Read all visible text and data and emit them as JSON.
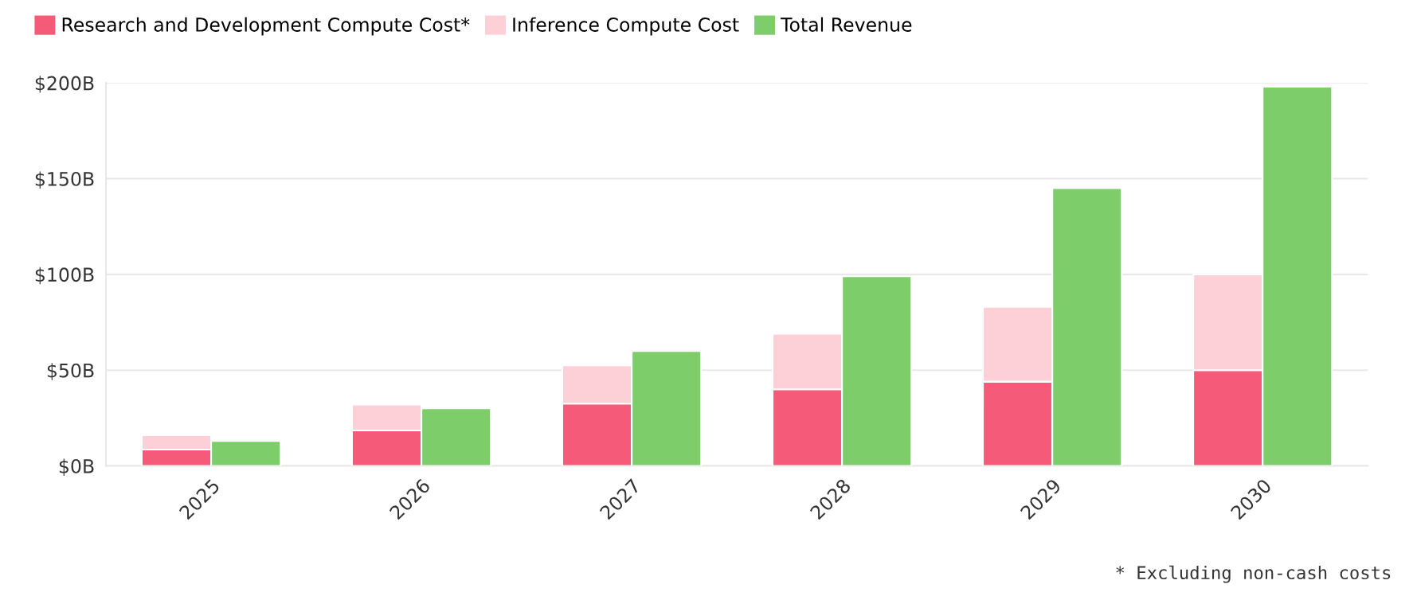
{
  "chart_data": [
    {
      "type": "bar",
      "stacked": true,
      "categories": [
        "2025",
        "2026",
        "2027",
        "2028",
        "2029",
        "2030"
      ],
      "series": [
        {
          "name": "Research and Development Compute Cost*",
          "color": "#f55a78",
          "values": [
            8.5,
            18.5,
            32.5,
            40,
            44,
            50
          ]
        },
        {
          "name": "Inference Compute Cost",
          "color": "#fdd0d7",
          "values": [
            7.5,
            13.5,
            20,
            29,
            39,
            50
          ]
        }
      ],
      "ylim": [
        0,
        200
      ],
      "yticks": [
        {
          "value": 0,
          "label": "$0B"
        },
        {
          "value": 50,
          "label": "$50B"
        },
        {
          "value": 100,
          "label": "$100B"
        },
        {
          "value": 150,
          "label": "$150B"
        },
        {
          "value": 200,
          "label": "$200B"
        }
      ],
      "grid": "y",
      "legend": "top left",
      "annotations": [
        "* Excluding non-cash costs"
      ]
    },
    {
      "type": "bar",
      "categories": [
        "2025",
        "2026",
        "2027",
        "2028",
        "2029",
        "2030"
      ],
      "series": [
        {
          "name": "Total Revenue",
          "color": "#7ecd6b",
          "values": [
            13,
            30,
            60,
            99,
            145,
            198
          ]
        }
      ],
      "ylim": [
        0,
        200
      ],
      "tick_labels": false,
      "legend": "top"
    }
  ]
}
